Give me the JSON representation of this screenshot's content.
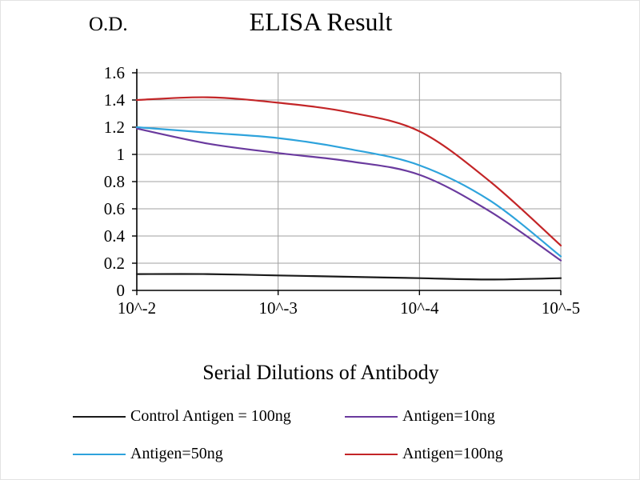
{
  "chart_data": {
    "type": "line",
    "title": "ELISA Result",
    "ylabel": "O.D.",
    "xlabel": "Serial Dilutions of Antibody",
    "categories": [
      "10^-2",
      "10^-3",
      "10^-4",
      "10^-5"
    ],
    "ylim": [
      0,
      1.6
    ],
    "ytick_labels": [
      "0",
      "0.2",
      "0.4",
      "0.6",
      "0.8",
      "1",
      "1.2",
      "1.4",
      "1.6"
    ],
    "grid": true,
    "grid_color": "#a0a0a0",
    "axis_color": "#000000",
    "legend_position": "bottom",
    "series": [
      {
        "name": "Control Antigen = 100ng",
        "color": "#1a1a1a",
        "x": [
          0,
          0.5,
          1,
          1.5,
          2,
          2.5,
          3
        ],
        "values": [
          0.12,
          0.12,
          0.11,
          0.1,
          0.09,
          0.08,
          0.09
        ]
      },
      {
        "name": "Antigen=10ng",
        "color": "#6a3a9e",
        "x": [
          0,
          0.5,
          1,
          1.5,
          2,
          2.5,
          3
        ],
        "values": [
          1.19,
          1.08,
          1.01,
          0.95,
          0.85,
          0.58,
          0.22
        ]
      },
      {
        "name": "Antigen=50ng",
        "color": "#2ea3dc",
        "x": [
          0,
          0.5,
          1,
          1.5,
          2,
          2.5,
          3
        ],
        "values": [
          1.2,
          1.16,
          1.12,
          1.04,
          0.92,
          0.66,
          0.25
        ]
      },
      {
        "name": "Antigen=100ng",
        "color": "#c32527",
        "x": [
          0,
          0.5,
          1,
          1.5,
          2,
          2.5,
          3
        ],
        "values": [
          1.4,
          1.42,
          1.38,
          1.31,
          1.17,
          0.8,
          0.33
        ]
      }
    ]
  }
}
